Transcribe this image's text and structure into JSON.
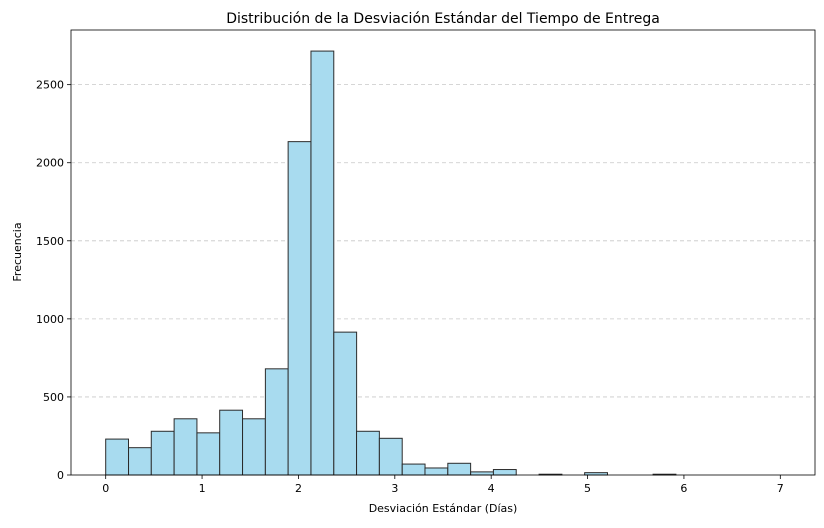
{
  "chart_data": {
    "type": "bar",
    "title": "Distribución de la Desviación Estándar del Tiempo de Entrega",
    "xlabel": "Desviación Estándar (Días)",
    "ylabel": "Frecuencia",
    "xlim": [
      -0.36,
      7.36
    ],
    "ylim": [
      0,
      2850
    ],
    "xticks": [
      0,
      1,
      2,
      3,
      4,
      5,
      6,
      7
    ],
    "yticks": [
      0,
      500,
      1000,
      1500,
      2000,
      2500
    ],
    "grid": "y dashed",
    "bin_width": 0.2367,
    "bins": [
      {
        "x0": 0.0,
        "value": 230
      },
      {
        "x0": 0.237,
        "value": 175
      },
      {
        "x0": 0.473,
        "value": 280
      },
      {
        "x0": 0.71,
        "value": 360
      },
      {
        "x0": 0.947,
        "value": 270
      },
      {
        "x0": 1.183,
        "value": 415
      },
      {
        "x0": 1.42,
        "value": 360
      },
      {
        "x0": 1.657,
        "value": 680
      },
      {
        "x0": 1.893,
        "value": 2135
      },
      {
        "x0": 2.13,
        "value": 2715
      },
      {
        "x0": 2.367,
        "value": 915
      },
      {
        "x0": 2.603,
        "value": 280
      },
      {
        "x0": 2.84,
        "value": 235
      },
      {
        "x0": 3.077,
        "value": 70
      },
      {
        "x0": 3.313,
        "value": 45
      },
      {
        "x0": 3.55,
        "value": 75
      },
      {
        "x0": 3.787,
        "value": 20
      },
      {
        "x0": 4.023,
        "value": 35
      },
      {
        "x0": 4.26,
        "value": 0
      },
      {
        "x0": 4.497,
        "value": 5
      },
      {
        "x0": 4.733,
        "value": 0
      },
      {
        "x0": 4.97,
        "value": 15
      },
      {
        "x0": 5.207,
        "value": 0
      },
      {
        "x0": 5.443,
        "value": 0
      },
      {
        "x0": 5.68,
        "value": 5
      },
      {
        "x0": 5.917,
        "value": 0
      },
      {
        "x0": 6.153,
        "value": 0
      },
      {
        "x0": 6.39,
        "value": 0
      },
      {
        "x0": 6.627,
        "value": 0
      },
      {
        "x0": 6.863,
        "value": 0
      }
    ],
    "colors": {
      "bar_fill": "#a8dbef",
      "bar_edge": "#2b2b2b",
      "grid": "#c8c8c8"
    }
  }
}
